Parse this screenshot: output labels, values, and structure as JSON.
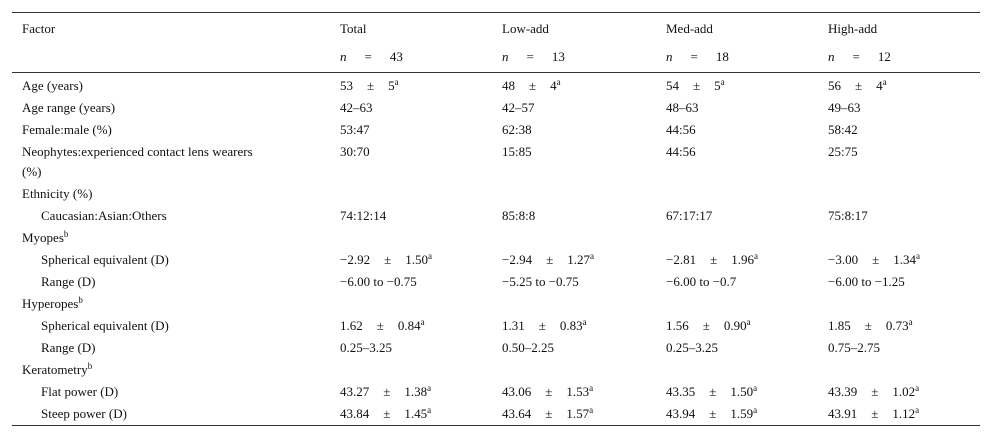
{
  "table": {
    "header": [
      "Factor",
      "Total",
      "Low-add",
      "Med-add",
      "High-add"
    ],
    "n_row": [
      {
        "symbol": "n",
        "eq": "=",
        "value": "43"
      },
      {
        "symbol": "n",
        "eq": "=",
        "value": "13"
      },
      {
        "symbol": "n",
        "eq": "=",
        "value": "18"
      },
      {
        "symbol": "n",
        "eq": "=",
        "value": "12"
      }
    ],
    "rows": [
      {
        "label": "Age (years)",
        "cells": [
          {
            "mean": "53",
            "pm": "±",
            "sd": "5",
            "sup": "a"
          },
          {
            "mean": "48",
            "pm": "±",
            "sd": "4",
            "sup": "a"
          },
          {
            "mean": "54",
            "pm": "±",
            "sd": "5",
            "sup": "a"
          },
          {
            "mean": "56",
            "pm": "±",
            "sd": "4",
            "sup": "a"
          }
        ]
      },
      {
        "label": "Age range (years)",
        "cells": [
          "42–63",
          "42–57",
          "48–63",
          "49–63"
        ]
      },
      {
        "label": "Female:male (%)",
        "cells": [
          "53:47",
          "62:38",
          "44:56",
          "58:42"
        ]
      },
      {
        "label": "Neophytes:experienced contact lens wearers (%)",
        "cells": [
          "30:70",
          "15:85",
          "44:56",
          "25:75"
        ]
      },
      {
        "label": "Ethnicity (%)",
        "rows": [
          {
            "label": "Caucasian:Asian:Others",
            "cells": [
              "74:12:14",
              "85:8:8",
              "67:17:17",
              "75:8:17"
            ]
          }
        ]
      },
      {
        "label": "Myopes",
        "label_sup": "b",
        "rows": [
          {
            "label": "Spherical equivalent (D)",
            "cells": [
              {
                "mean": "−2.92",
                "pm": "±",
                "sd": "1.50",
                "sup": "a"
              },
              {
                "mean": "−2.94",
                "pm": "±",
                "sd": "1.27",
                "sup": "a"
              },
              {
                "mean": "−2.81",
                "pm": "±",
                "sd": "1.96",
                "sup": "a"
              },
              {
                "mean": "−3.00",
                "pm": "±",
                "sd": "1.34",
                "sup": "a"
              }
            ]
          },
          {
            "label": "Range (D)",
            "cells": [
              "−6.00 to −0.75",
              "−5.25 to −0.75",
              "−6.00 to −0.7",
              "−6.00 to −1.25"
            ]
          }
        ]
      },
      {
        "label": "Hyperopes",
        "label_sup": "b",
        "rows": [
          {
            "label": "Spherical equivalent (D)",
            "cells": [
              {
                "mean": "1.62",
                "pm": "±",
                "sd": "0.84",
                "sup": "a"
              },
              {
                "mean": "1.31",
                "pm": "±",
                "sd": "0.83",
                "sup": "a"
              },
              {
                "mean": "1.56",
                "pm": "±",
                "sd": "0.90",
                "sup": "a"
              },
              {
                "mean": "1.85",
                "pm": "±",
                "sd": "0.73",
                "sup": "a"
              }
            ]
          },
          {
            "label": "Range (D)",
            "cells": [
              "0.25–3.25",
              "0.50–2.25",
              "0.25–3.25",
              "0.75–2.75"
            ]
          }
        ]
      },
      {
        "label": "Keratometry",
        "label_sup": "b",
        "rows": [
          {
            "label": "Flat power (D)",
            "cells": [
              {
                "mean": "43.27",
                "pm": "±",
                "sd": "1.38",
                "sup": "a"
              },
              {
                "mean": "43.06",
                "pm": "±",
                "sd": "1.53",
                "sup": "a"
              },
              {
                "mean": "43.35",
                "pm": "±",
                "sd": "1.50",
                "sup": "a"
              },
              {
                "mean": "43.39",
                "pm": "±",
                "sd": "1.02",
                "sup": "a"
              }
            ]
          },
          {
            "label": "Steep power (D)",
            "cells": [
              {
                "mean": "43.84",
                "pm": "±",
                "sd": "1.45",
                "sup": "a"
              },
              {
                "mean": "43.64",
                "pm": "±",
                "sd": "1.57",
                "sup": "a"
              },
              {
                "mean": "43.94",
                "pm": "±",
                "sd": "1.59",
                "sup": "a"
              },
              {
                "mean": "43.91",
                "pm": "±",
                "sd": "1.12",
                "sup": "a"
              }
            ]
          }
        ]
      }
    ]
  }
}
